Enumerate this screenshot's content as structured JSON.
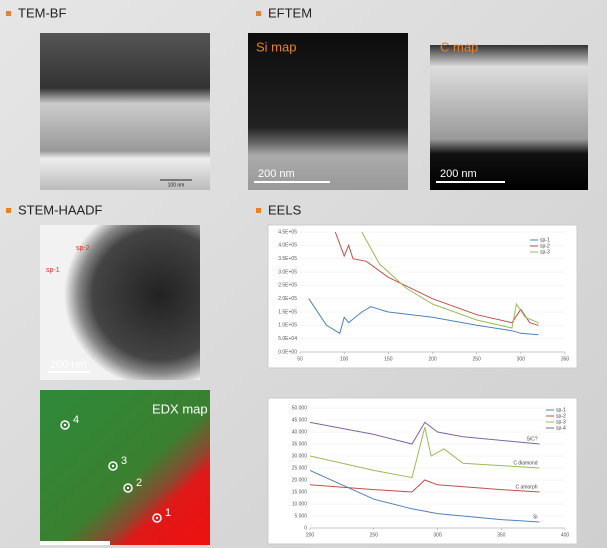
{
  "labels": {
    "tem_bf": "TEM-BF",
    "eftem": "EFTEM",
    "stem": "STEM-HAADF",
    "eels": "EELS",
    "si_map": "Si map",
    "c_map": "C map",
    "edx_map": "EDX map",
    "scale_tem": "100 nm",
    "scale_si": "200 nm",
    "scale_c": "200 nm",
    "scale_stem": "200 nm",
    "stem_sp1": "sp-1",
    "stem_sp2": "sp-2",
    "edx_points": [
      "1",
      "2",
      "3",
      "4"
    ]
  },
  "chart_data": [
    {
      "type": "line",
      "xlim": [
        50,
        350
      ],
      "xticks": [
        50,
        100,
        150,
        200,
        250,
        300,
        350
      ],
      "ylim": [
        0,
        450000
      ],
      "yticks": [
        {
          "value": 0,
          "label": "0.0E+00"
        },
        {
          "value": 50000,
          "label": "5.0E+04"
        },
        {
          "value": 100000,
          "label": "1.0E+05"
        },
        {
          "value": 150000,
          "label": "1.5E+05"
        },
        {
          "value": 200000,
          "label": "2.0E+05"
        },
        {
          "value": 250000,
          "label": "2.5E+05"
        },
        {
          "value": 300000,
          "label": "3.0E+05"
        },
        {
          "value": 350000,
          "label": "3.5E+05"
        },
        {
          "value": 400000,
          "label": "4.0E+05"
        },
        {
          "value": 450000,
          "label": "4.5E+05"
        }
      ],
      "series": [
        {
          "name": "sp-1",
          "color": "#4f81bd",
          "x": [
            60,
            80,
            95,
            100,
            105,
            120,
            130,
            150,
            200,
            250,
            290,
            300,
            320
          ],
          "values": [
            200000,
            100000,
            70000,
            130000,
            110000,
            150000,
            170000,
            150000,
            130000,
            100000,
            80000,
            70000,
            65000
          ]
        },
        {
          "name": "sp-2",
          "color": "#c0504d",
          "x": [
            90,
            100,
            105,
            110,
            125,
            150,
            200,
            250,
            290,
            300,
            310,
            320
          ],
          "values": [
            450000,
            360000,
            400000,
            350000,
            340000,
            280000,
            200000,
            140000,
            110000,
            160000,
            110000,
            100000
          ]
        },
        {
          "name": "sp-3",
          "color": "#9bbb59",
          "x": [
            120,
            140,
            170,
            200,
            250,
            290,
            295,
            305,
            320
          ],
          "values": [
            450000,
            330000,
            240000,
            180000,
            120000,
            90000,
            180000,
            130000,
            110000
          ]
        }
      ]
    },
    {
      "type": "line",
      "xlim": [
        200,
        400
      ],
      "xticks": [
        200,
        250,
        300,
        350,
        400
      ],
      "ylim": [
        0,
        50000
      ],
      "yticks": [
        0,
        {
          "value": 5000,
          "label": "5 000"
        },
        {
          "value": 10000,
          "label": "10 000"
        },
        {
          "value": 15000,
          "label": "15 000"
        },
        {
          "value": 20000,
          "label": "20 000"
        },
        {
          "value": 25000,
          "label": "25 000"
        },
        {
          "value": 30000,
          "label": "30 000"
        },
        {
          "value": 35000,
          "label": "35 000"
        },
        {
          "value": 40000,
          "label": "40 000"
        },
        {
          "value": 45000,
          "label": "45 000"
        },
        {
          "value": 50000,
          "label": "50 000"
        }
      ],
      "series": [
        {
          "name": "sp-1",
          "color": "#4f81bd",
          "label": "Si",
          "x": [
            200,
            250,
            280,
            300,
            350,
            380
          ],
          "values": [
            24000,
            12000,
            8000,
            6000,
            3500,
            2500
          ]
        },
        {
          "name": "sp-2",
          "color": "#c0504d",
          "label": "C amorph",
          "x": [
            200,
            250,
            280,
            290,
            300,
            350,
            380
          ],
          "values": [
            18000,
            16000,
            15000,
            20000,
            18000,
            16000,
            15000
          ]
        },
        {
          "name": "sp-3",
          "color": "#9bbb59",
          "label": "C diamond",
          "x": [
            200,
            250,
            280,
            290,
            295,
            305,
            320,
            380
          ],
          "values": [
            30000,
            24000,
            21000,
            42000,
            30000,
            33000,
            27000,
            25000
          ]
        },
        {
          "name": "sp-4",
          "color": "#8064a2",
          "label": "SiC?",
          "x": [
            200,
            250,
            280,
            290,
            300,
            320,
            380
          ],
          "values": [
            44000,
            39000,
            35000,
            44000,
            40000,
            38000,
            35000
          ]
        }
      ]
    }
  ]
}
